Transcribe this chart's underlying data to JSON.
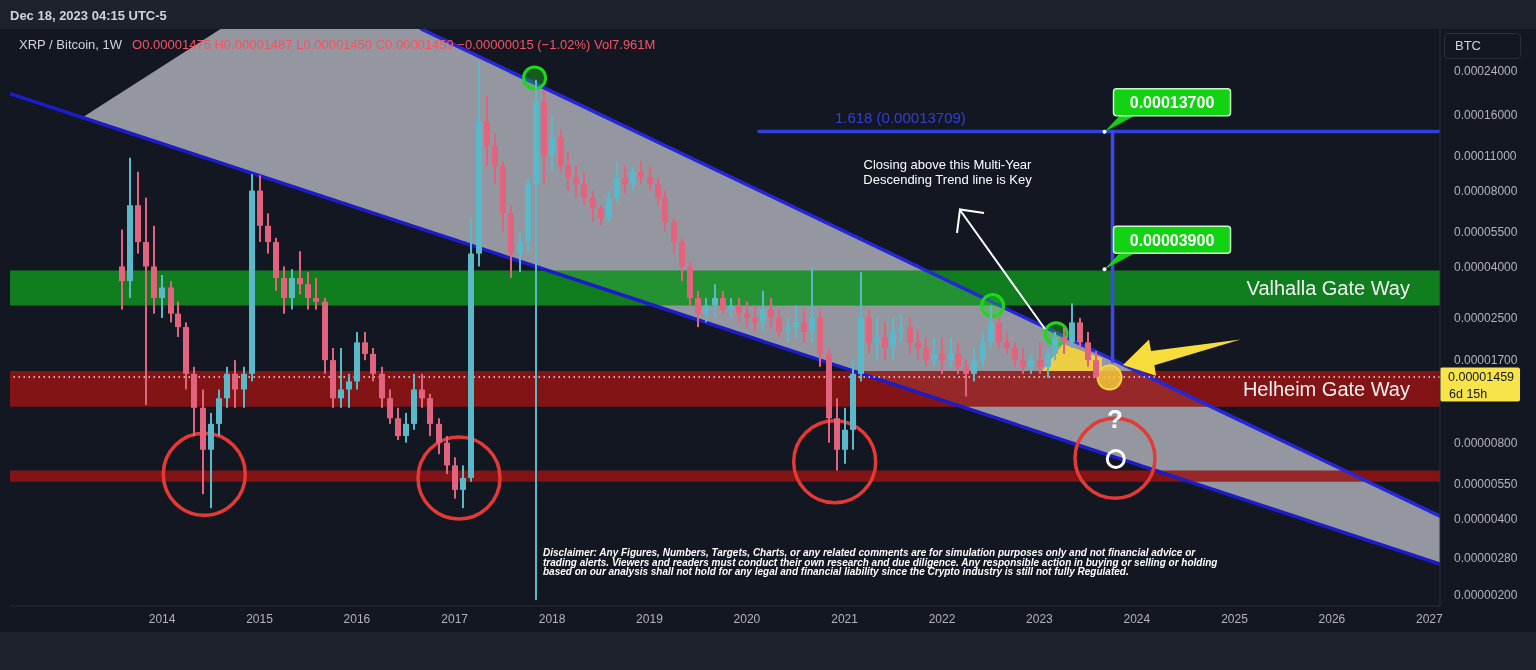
{
  "chart_data": {
    "type": "candlestick",
    "title": "XRP / Bitcoin, 1W",
    "subtitle": "O0.00001475 H0.00001487 L0.00001450 C0.00001459 −0.00000015 (−1.02%) Vol7.961M",
    "ylabel": "BTC",
    "x": [
      "2013-08",
      "2013-09",
      "2013-10",
      "2013-11",
      "2013-12",
      "2014-01",
      "2014-02",
      "2014-03",
      "2014-04",
      "2014-05",
      "2014-06",
      "2014-07",
      "2014-08",
      "2014-09",
      "2014-10",
      "2014-11",
      "2014-12",
      "2015-01",
      "2015-02",
      "2015-03",
      "2015-04",
      "2015-05",
      "2015-06",
      "2015-07",
      "2015-08",
      "2015-09",
      "2015-10",
      "2015-11",
      "2015-12",
      "2016-01",
      "2016-02",
      "2016-03",
      "2016-04",
      "2016-05",
      "2016-06",
      "2016-07",
      "2016-08",
      "2016-09",
      "2016-10",
      "2016-11",
      "2016-12",
      "2017-01",
      "2017-02",
      "2017-03",
      "2017-04",
      "2017-05",
      "2017-06",
      "2017-07",
      "2017-08",
      "2017-09",
      "2017-10",
      "2017-11",
      "2017-12",
      "2018-01",
      "2018-02",
      "2018-03",
      "2018-04",
      "2018-05",
      "2018-06",
      "2018-07",
      "2018-08",
      "2018-09",
      "2018-10",
      "2018-11",
      "2018-12",
      "2019-01",
      "2019-02",
      "2019-03",
      "2019-04",
      "2019-05",
      "2019-06",
      "2019-07",
      "2019-08",
      "2019-09",
      "2019-10",
      "2019-11",
      "2019-12",
      "2020-01",
      "2020-02",
      "2020-03",
      "2020-04",
      "2020-05",
      "2020-06",
      "2020-07",
      "2020-08",
      "2020-09",
      "2020-10",
      "2020-11",
      "2020-12",
      "2021-01",
      "2021-02",
      "2021-03",
      "2021-04",
      "2021-05",
      "2021-06",
      "2021-07",
      "2021-08",
      "2021-09",
      "2021-10",
      "2021-11",
      "2021-12",
      "2022-01",
      "2022-02",
      "2022-03",
      "2022-04",
      "2022-05",
      "2022-06",
      "2022-07",
      "2022-08",
      "2022-09",
      "2022-10",
      "2022-11",
      "2022-12",
      "2023-01",
      "2023-02",
      "2023-03",
      "2023-04",
      "2023-05",
      "2023-06",
      "2023-07",
      "2023-08"
    ],
    "ohlc": [
      [
        4e-05,
        5.6e-05,
        2.7e-05,
        3.5e-05
      ],
      [
        3.5e-05,
        0.000108,
        3e-05,
        7e-05
      ],
      [
        7e-05,
        9.5e-05,
        4.5e-05,
        5e-05
      ],
      [
        5e-05,
        7.5e-05,
        1.13e-05,
        4e-05
      ],
      [
        4e-05,
        5.8e-05,
        2.6e-05,
        3e-05
      ],
      [
        3e-05,
        3.7e-05,
        2.5e-05,
        3.3e-05
      ],
      [
        3.3e-05,
        3.5e-05,
        2.4e-05,
        2.6e-05
      ],
      [
        2.6e-05,
        2.9e-05,
        2.1e-05,
        2.3e-05
      ],
      [
        2.3e-05,
        2.4e-05,
        1.3e-05,
        1.5e-05
      ],
      [
        1.5e-05,
        1.6e-05,
        8.5e-06,
        1.1e-05
      ],
      [
        1.1e-05,
        1.3e-05,
        5e-06,
        7.5e-06
      ],
      [
        7.5e-06,
        1.05e-05,
        4.4e-06,
        9.5e-06
      ],
      [
        9.5e-06,
        1.3e-05,
        8.5e-06,
        1.2e-05
      ],
      [
        1.2e-05,
        1.6e-05,
        1.1e-05,
        1.5e-05
      ],
      [
        1.5e-05,
        1.7e-05,
        1.1e-05,
        1.3e-05
      ],
      [
        1.3e-05,
        1.6e-05,
        1.1e-05,
        1.5e-05
      ],
      [
        1.5e-05,
        9.3e-05,
        1.4e-05,
        8e-05
      ],
      [
        8e-05,
        9.2e-05,
        5e-05,
        5.8e-05
      ],
      [
        5.8e-05,
        6.5e-05,
        4.5e-05,
        5e-05
      ],
      [
        5e-05,
        5.2e-05,
        3.2e-05,
        3.6e-05
      ],
      [
        3.6e-05,
        4e-05,
        2.6e-05,
        3e-05
      ],
      [
        3e-05,
        3.9e-05,
        2.7e-05,
        3.6e-05
      ],
      [
        3.6e-05,
        4.6e-05,
        3.1e-05,
        3.4e-05
      ],
      [
        3.4e-05,
        3.8e-05,
        2.7e-05,
        3e-05
      ],
      [
        3e-05,
        3.6e-05,
        2.7e-05,
        2.9e-05
      ],
      [
        2.9e-05,
        3e-05,
        1.5e-05,
        1.7e-05
      ],
      [
        1.7e-05,
        1.9e-05,
        1.1e-05,
        1.2e-05
      ],
      [
        1.2e-05,
        1.9e-05,
        1.1e-05,
        1.3e-05
      ],
      [
        1.3e-05,
        1.5e-05,
        1.1e-05,
        1.4e-05
      ],
      [
        1.4e-05,
        2.2e-05,
        1.3e-05,
        2e-05
      ],
      [
        2e-05,
        2.2e-05,
        1.7e-05,
        1.8e-05
      ],
      [
        1.8e-05,
        1.9e-05,
        1.4e-05,
        1.5e-05
      ],
      [
        1.5e-05,
        1.6e-05,
        1.1e-05,
        1.2e-05
      ],
      [
        1.2e-05,
        1.3e-05,
        9.5e-06,
        1e-05
      ],
      [
        1e-05,
        1.1e-05,
        8.2e-06,
        8.5e-06
      ],
      [
        8.5e-06,
        1.05e-05,
        8e-06,
        9.5e-06
      ],
      [
        9.5e-06,
        1.5e-05,
        9e-06,
        1.3e-05
      ],
      [
        1.3e-05,
        1.5e-05,
        1.1e-05,
        1.2e-05
      ],
      [
        1.2e-05,
        1.25e-05,
        8.5e-06,
        9.5e-06
      ],
      [
        9.5e-06,
        1e-05,
        7.2e-06,
        8e-06
      ],
      [
        8e-06,
        8.5e-06,
        6e-06,
        6.5e-06
      ],
      [
        6.5e-06,
        7e-06,
        4.8e-06,
        5.2e-06
      ],
      [
        5.2e-06,
        6.5e-06,
        4.4e-06,
        5.8e-06
      ],
      [
        5.8e-06,
        6.2e-05,
        5.6e-06,
        4.5e-05
      ],
      [
        4.5e-05,
        0.00026,
        4e-05,
        0.00015
      ],
      [
        0.00015,
        0.00019,
        0.0001,
        0.00012
      ],
      [
        0.00012,
        0.000135,
        8.5e-05,
        0.0001
      ],
      [
        0.0001,
        0.000105,
        5.5e-05,
        6.5e-05
      ],
      [
        6.5e-05,
        7e-05,
        3.6e-05,
        4.5e-05
      ],
      [
        4.5e-05,
        5.5e-05,
        3.8e-05,
        5e-05
      ],
      [
        5e-05,
        9e-05,
        4.5e-05,
        8.5e-05
      ],
      [
        8.5e-05,
        0.00022,
        1.9e-06,
        0.00018
      ],
      [
        0.00018,
        0.0002,
        8.5e-05,
        0.00011
      ],
      [
        0.00011,
        0.00016,
        9.5e-05,
        0.00013
      ],
      [
        0.00013,
        0.00014,
        9.5e-05,
        0.0001
      ],
      [
        0.0001,
        0.000114,
        8e-05,
        9e-05
      ],
      [
        9e-05,
        0.0001,
        7.5e-05,
        8.5e-05
      ],
      [
        8.5e-05,
        9.5e-05,
        7e-05,
        7.5e-05
      ],
      [
        7.5e-05,
        8e-05,
        6e-05,
        6.8e-05
      ],
      [
        6.8e-05,
        7e-05,
        5.8e-05,
        6.2e-05
      ],
      [
        6.2e-05,
        8e-05,
        6e-05,
        7.5e-05
      ],
      [
        7.5e-05,
        0.000103,
        7.2e-05,
        9e-05
      ],
      [
        9e-05,
        0.0001,
        7.8e-05,
        8.5e-05
      ],
      [
        8.5e-05,
        0.0001,
        8e-05,
        9.5e-05
      ],
      [
        9.5e-05,
        0.000105,
        8.5e-05,
        9e-05
      ],
      [
        9e-05,
        0.0001,
        8e-05,
        8.5e-05
      ],
      [
        8.5e-05,
        9e-05,
        7e-05,
        7.5e-05
      ],
      [
        7.5e-05,
        8e-05,
        5.5e-05,
        6e-05
      ],
      [
        6e-05,
        6.2e-05,
        4.5e-05,
        5e-05
      ],
      [
        5e-05,
        5.2e-05,
        3.5e-05,
        4e-05
      ],
      [
        4e-05,
        4.2e-05,
        2.8e-05,
        3e-05
      ],
      [
        3e-05,
        3.2e-05,
        2.3e-05,
        2.6e-05
      ],
      [
        2.6e-05,
        3e-05,
        2.4e-05,
        2.8e-05
      ],
      [
        2.8e-05,
        3.4e-05,
        2.5e-05,
        3e-05
      ],
      [
        3e-05,
        3.2e-05,
        2.6e-05,
        2.7e-05
      ],
      [
        2.7e-05,
        3e-05,
        2.5e-05,
        2.8e-05
      ],
      [
        2.8e-05,
        3e-05,
        2.4e-05,
        2.6e-05
      ],
      [
        2.6e-05,
        2.9e-05,
        2.3e-05,
        2.5e-05
      ],
      [
        2.5e-05,
        2.8e-05,
        2.2e-05,
        2.4e-05
      ],
      [
        2.4e-05,
        3.2e-05,
        2.2e-05,
        2.7e-05
      ],
      [
        2.7e-05,
        3e-05,
        2.3e-05,
        2.5e-05
      ],
      [
        2.5e-05,
        2.7e-05,
        2.1e-05,
        2.2e-05
      ],
      [
        2.2e-05,
        2.5e-05,
        2e-05,
        2.3e-05
      ],
      [
        2.3e-05,
        2.8e-05,
        2.1e-05,
        2.4e-05
      ],
      [
        2.4e-05,
        2.7e-05,
        2e-05,
        2.2e-05
      ],
      [
        2.2e-05,
        4e-05,
        2e-05,
        2.5e-05
      ],
      [
        2.5e-05,
        2.7e-05,
        1.6e-05,
        1.8e-05
      ],
      [
        1.8e-05,
        1.9e-05,
        8e-06,
        1e-05
      ],
      [
        1e-05,
        1.2e-05,
        6.2e-06,
        7.5e-06
      ],
      [
        7.5e-06,
        1.1e-05,
        6.6e-06,
        9e-06
      ],
      [
        9e-06,
        1.7e-05,
        7.5e-06,
        1.5e-05
      ],
      [
        1.5e-05,
        3.8e-05,
        1.4e-05,
        2.5e-05
      ],
      [
        2.5e-05,
        2.7e-05,
        1.8e-05,
        2e-05
      ],
      [
        2e-05,
        2.5e-05,
        1.7e-05,
        2.1e-05
      ],
      [
        2.1e-05,
        2.4e-05,
        1.7e-05,
        1.9e-05
      ],
      [
        1.9e-05,
        2.5e-05,
        1.7e-05,
        2.2e-05
      ],
      [
        2.2e-05,
        2.6e-05,
        2e-05,
        2.3e-05
      ],
      [
        2.3e-05,
        2.5e-05,
        1.8e-05,
        2e-05
      ],
      [
        2e-05,
        2.2e-05,
        1.7e-05,
        1.9e-05
      ],
      [
        1.9e-05,
        2.1e-05,
        1.6e-05,
        1.7e-05
      ],
      [
        1.7e-05,
        2.1e-05,
        1.6e-05,
        1.8e-05
      ],
      [
        1.8e-05,
        2.1e-05,
        1.5e-05,
        1.7e-05
      ],
      [
        1.7e-05,
        2.1e-05,
        1.6e-05,
        1.8e-05
      ],
      [
        1.8e-05,
        2e-05,
        1.5e-05,
        1.6e-05
      ],
      [
        1.6e-05,
        1.7e-05,
        1.22e-05,
        1.5e-05
      ],
      [
        1.5e-05,
        1.9e-05,
        1.4e-05,
        1.7e-05
      ],
      [
        1.7e-05,
        2.2e-05,
        1.6e-05,
        2e-05
      ],
      [
        2e-05,
        2.8e-05,
        1.9e-05,
        2.4e-05
      ],
      [
        2.4e-05,
        2.5e-05,
        1.9e-05,
        2e-05
      ],
      [
        2e-05,
        2.2e-05,
        1.8e-05,
        1.9e-05
      ],
      [
        1.9e-05,
        2e-05,
        1.6e-05,
        1.7e-05
      ],
      [
        1.7e-05,
        1.9e-05,
        1.5e-05,
        1.6e-05
      ],
      [
        1.6e-05,
        1.8e-05,
        1.5e-05,
        1.7e-05
      ],
      [
        1.7e-05,
        2e-05,
        1.5e-05,
        1.6e-05
      ],
      [
        1.6e-05,
        1.9e-05,
        1.45e-05,
        1.8e-05
      ],
      [
        1.8e-05,
        2.2e-05,
        1.7e-05,
        2.1e-05
      ],
      [
        2.1e-05,
        2.3e-05,
        1.8e-05,
        2e-05
      ],
      [
        2e-05,
        2.86e-05,
        1.9e-05,
        2.4e-05
      ],
      [
        2.4e-05,
        2.5e-05,
        1.9e-05,
        2e-05
      ],
      [
        2e-05,
        2.2e-05,
        1.6e-05,
        1.7e-05
      ],
      [
        1.7e-05,
        1.85e-05,
        1.45e-05,
        1.459e-05
      ]
    ],
    "colors": [
      "#e2637e",
      "#5ab8c9",
      "#e2637e",
      "#e2637e",
      "#e2637e",
      "#5ab8c9",
      "#e2637e",
      "#e2637e",
      "#e2637e",
      "#e2637e",
      "#e2637e",
      "#5ab8c9",
      "#5ab8c9",
      "#5ab8c9",
      "#e2637e",
      "#5ab8c9",
      "#5ab8c9",
      "#e2637e",
      "#e2637e",
      "#e2637e",
      "#e2637e",
      "#5ab8c9",
      "#e2637e",
      "#e2637e",
      "#e2637e",
      "#e2637e",
      "#e2637e",
      "#5ab8c9",
      "#5ab8c9",
      "#5ab8c9",
      "#e2637e",
      "#e2637e",
      "#e2637e",
      "#e2637e",
      "#e2637e",
      "#5ab8c9",
      "#5ab8c9",
      "#e2637e",
      "#e2637e",
      "#e2637e",
      "#e2637e",
      "#e2637e",
      "#5ab8c9",
      "#5ab8c9",
      "#5ab8c9",
      "#e2637e",
      "#e2637e",
      "#e2637e",
      "#e2637e",
      "#5ab8c9",
      "#5ab8c9",
      "#5ab8c9",
      "#e2637e",
      "#5ab8c9",
      "#e2637e",
      "#e2637e",
      "#e2637e",
      "#e2637e",
      "#e2637e",
      "#e2637e",
      "#5ab8c9",
      "#5ab8c9",
      "#e2637e",
      "#5ab8c9",
      "#e2637e",
      "#e2637e",
      "#e2637e",
      "#e2637e",
      "#e2637e",
      "#e2637e",
      "#e2637e",
      "#e2637e",
      "#5ab8c9",
      "#5ab8c9",
      "#e2637e",
      "#5ab8c9",
      "#e2637e",
      "#e2637e",
      "#e2637e",
      "#5ab8c9",
      "#e2637e",
      "#e2637e",
      "#5ab8c9",
      "#5ab8c9",
      "#e2637e",
      "#5ab8c9",
      "#e2637e",
      "#e2637e",
      "#e2637e",
      "#5ab8c9",
      "#5ab8c9",
      "#5ab8c9",
      "#e2637e",
      "#5ab8c9",
      "#e2637e",
      "#5ab8c9",
      "#5ab8c9",
      "#e2637e",
      "#e2637e",
      "#e2637e",
      "#5ab8c9",
      "#e2637e",
      "#5ab8c9",
      "#e2637e",
      "#e2637e",
      "#5ab8c9",
      "#5ab8c9",
      "#5ab8c9",
      "#e2637e",
      "#e2637e",
      "#e2637e",
      "#e2637e",
      "#5ab8c9",
      "#e2637e",
      "#5ab8c9",
      "#5ab8c9",
      "#e2637e",
      "#5ab8c9",
      "#e2637e",
      "#e2637e",
      "#e2637e"
    ],
    "series": [
      {
        "type": "line",
        "color": "#2626da",
        "x": [
          "2016-08-29",
          "2027-02-10"
        ],
        "values": [
          0.00035,
          4.09e-06
        ]
      },
      {
        "type": "line",
        "color": "#1c1cc8",
        "x": [
          "2012-06-10",
          "2013-03-08",
          "2014-08-08",
          "2016-08-29",
          "2027-02-10"
        ],
        "values": [
          0.000194,
          0.000156,
          0.000103,
          5.64e-05,
          2.64e-06
        ],
        "lower": [
          0.000194,
          0.000156,
          0.000103,
          5.64e-05,
          2.64e-06
        ],
        "upper": [
          0.000194,
          0.000156,
          0.00035,
          0.00035,
          4.09e-06
        ]
      },
      {
        "type": "line",
        "name": "1.618 (0.00013709)",
        "color": "#3040d8",
        "x": [
          "2020-02-15",
          "2027-02-10"
        ],
        "values": [
          0.00013709,
          0.00013709
        ]
      },
      {
        "type": "line",
        "color": "#3a4ae4",
        "x": [
          "2023-10-02",
          "2023-10-02"
        ],
        "values": [
          1.68e-05,
          0.00013709
        ]
      }
    ],
    "xlim": [
      "2012-06-10",
      "2027-02-10"
    ],
    "xticks": [
      "2014",
      "2015",
      "2016",
      "2017",
      "2018",
      "2019",
      "2020",
      "2021",
      "2022",
      "2023",
      "2024",
      "2025",
      "2026",
      "2027"
    ],
    "ylim": [
      1.8e-06,
      0.00035
    ],
    "yticks": [
      {
        "value": 0.00024,
        "label": "0.00024000"
      },
      {
        "value": 0.00016,
        "label": "0.00016000"
      },
      {
        "value": 0.00011,
        "label": "0.00011000"
      },
      {
        "value": 8e-05,
        "label": "0.00008000"
      },
      {
        "value": 5.5e-05,
        "label": "0.00005500"
      },
      {
        "value": 4e-05,
        "label": "0.00004000"
      },
      {
        "value": 2.5e-05,
        "label": "0.00002500"
      },
      {
        "value": 1.7e-05,
        "label": "0.00001700"
      },
      {
        "value": 8e-06,
        "label": "0.00000800"
      },
      {
        "value": 5.5e-06,
        "label": "0.00000550"
      },
      {
        "value": 4e-06,
        "label": "0.00000400"
      },
      {
        "value": 2.8e-06,
        "label": "0.00000280"
      },
      {
        "value": 2e-06,
        "label": "0.00000200"
      }
    ],
    "log": true,
    "bands": [
      {
        "axis": "y",
        "from": 2.8e-05,
        "to": 3.86e-05,
        "label": "Valhalla Gate Way",
        "color": "#10901e"
      },
      {
        "axis": "y",
        "from": 1.11e-05,
        "to": 1.54e-05,
        "label": "Helheim Gate Way",
        "color": "#961414"
      },
      {
        "axis": "y",
        "from": 5.6e-06,
        "to": 6.2e-06,
        "color": "#961414"
      }
    ],
    "ref_lines": [
      {
        "axis": "y",
        "value": 1.459e-05,
        "label": "0.00001459",
        "color": "#e8e8e8",
        "line_style": "dotted"
      }
    ],
    "annotations": [
      "Dec 18, 2023 04:15 UTC-5",
      "Closing above this Multi-Year Descending Trend line is Key",
      {
        "text": "0.00013700",
        "x": "2023-09-02",
        "y": 0.000137
      },
      {
        "text": "0.00003900",
        "x": "2023-09-02",
        "y": 3.9e-05
      },
      "?",
      "6d 15h",
      "Disclaimer: Any Figures, Numbers, Targets, Charts, or any related comments are for simulation purposes only and not financial advice or trading alerts. Viewers and readers must conduct their own research and due diligence. Any responsible action in buying or selling or holding based on our analysis shall not hold for any legal and financial liability since the Crypto industry is still not fully Regulated."
    ]
  }
}
